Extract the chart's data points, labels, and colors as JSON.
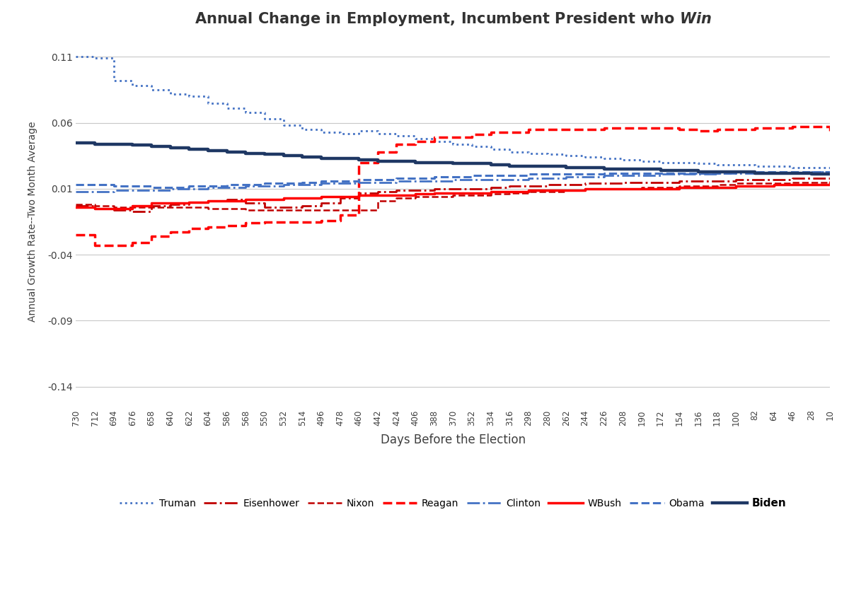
{
  "title_main": "Annual Change in Employment, Incumbent President who ",
  "title_italic": "Win",
  "ylabel": "Annual Growth Rate--Two Month Average",
  "xlabel": "Days Before the Election",
  "ylim": [
    -0.155,
    0.125
  ],
  "yticks": [
    0.11,
    0.06,
    0.01,
    -0.04,
    -0.09,
    -0.14
  ],
  "background_color": "#ffffff",
  "grid_color": "#c8c8c8",
  "series": {
    "Truman": {
      "color": "#4472c4",
      "linestyle": "dotted",
      "linewidth": 2.0,
      "x": [
        730,
        712,
        694,
        676,
        658,
        640,
        622,
        604,
        586,
        568,
        550,
        532,
        514,
        496,
        478,
        460,
        442,
        424,
        406,
        388,
        370,
        352,
        334,
        316,
        298,
        280,
        262,
        244,
        226,
        208,
        190,
        172,
        154,
        136,
        118,
        100,
        82,
        64,
        46,
        28,
        10
      ],
      "y": [
        0.11,
        0.109,
        0.092,
        0.088,
        0.085,
        0.082,
        0.08,
        0.075,
        0.071,
        0.068,
        0.063,
        0.058,
        0.055,
        0.053,
        0.052,
        0.054,
        0.052,
        0.05,
        0.048,
        0.046,
        0.044,
        0.042,
        0.04,
        0.038,
        0.037,
        0.036,
        0.035,
        0.034,
        0.033,
        0.032,
        0.031,
        0.03,
        0.03,
        0.029,
        0.028,
        0.028,
        0.027,
        0.027,
        0.026,
        0.026,
        0.025
      ]
    },
    "Eisenhower": {
      "color": "#c00000",
      "linestyle": "dashdot",
      "linewidth": 2.0,
      "x": [
        730,
        712,
        694,
        676,
        658,
        640,
        622,
        604,
        586,
        568,
        550,
        532,
        514,
        496,
        478,
        460,
        442,
        424,
        406,
        388,
        370,
        352,
        334,
        316,
        298,
        280,
        262,
        244,
        226,
        208,
        190,
        172,
        154,
        136,
        118,
        100,
        82,
        64,
        46,
        28,
        10
      ],
      "y": [
        -0.003,
        -0.005,
        -0.006,
        -0.007,
        -0.003,
        -0.002,
        0.0,
        0.001,
        0.002,
        -0.001,
        -0.004,
        -0.004,
        -0.003,
        -0.001,
        0.003,
        0.007,
        0.008,
        0.009,
        0.009,
        0.01,
        0.01,
        0.01,
        0.011,
        0.012,
        0.012,
        0.013,
        0.013,
        0.014,
        0.014,
        0.015,
        0.015,
        0.015,
        0.016,
        0.016,
        0.016,
        0.017,
        0.017,
        0.017,
        0.018,
        0.018,
        0.018
      ]
    },
    "Nixon": {
      "color": "#c00000",
      "linestyle": "dashed",
      "linewidth": 1.8,
      "x": [
        730,
        712,
        694,
        676,
        658,
        640,
        622,
        604,
        586,
        568,
        550,
        532,
        514,
        496,
        478,
        460,
        442,
        424,
        406,
        388,
        370,
        352,
        334,
        316,
        298,
        280,
        262,
        244,
        226,
        208,
        190,
        172,
        154,
        136,
        118,
        100,
        82,
        64,
        46,
        28,
        10
      ],
      "y": [
        -0.002,
        -0.003,
        -0.004,
        -0.004,
        -0.004,
        -0.004,
        -0.004,
        -0.005,
        -0.005,
        -0.006,
        -0.006,
        -0.006,
        -0.006,
        -0.006,
        -0.006,
        -0.006,
        0.001,
        0.003,
        0.004,
        0.004,
        0.005,
        0.005,
        0.006,
        0.007,
        0.008,
        0.008,
        0.009,
        0.01,
        0.01,
        0.01,
        0.011,
        0.011,
        0.012,
        0.012,
        0.013,
        0.014,
        0.014,
        0.014,
        0.015,
        0.015,
        0.016
      ]
    },
    "Reagan": {
      "color": "#ff0000",
      "linestyle": "dashed",
      "linewidth": 2.5,
      "x": [
        730,
        712,
        694,
        676,
        658,
        640,
        622,
        604,
        586,
        568,
        550,
        532,
        514,
        496,
        478,
        460,
        442,
        424,
        406,
        388,
        370,
        352,
        334,
        316,
        298,
        280,
        262,
        244,
        226,
        208,
        190,
        172,
        154,
        136,
        118,
        100,
        82,
        64,
        46,
        28,
        10
      ],
      "y": [
        -0.025,
        -0.033,
        -0.033,
        -0.031,
        -0.026,
        -0.023,
        -0.02,
        -0.019,
        -0.018,
        -0.016,
        -0.015,
        -0.015,
        -0.015,
        -0.014,
        -0.01,
        0.03,
        0.038,
        0.044,
        0.046,
        0.049,
        0.049,
        0.051,
        0.053,
        0.053,
        0.055,
        0.055,
        0.055,
        0.055,
        0.056,
        0.056,
        0.056,
        0.056,
        0.055,
        0.054,
        0.055,
        0.055,
        0.056,
        0.056,
        0.057,
        0.057,
        0.054
      ]
    },
    "Clinton": {
      "color": "#4472c4",
      "linestyle": "dashdot",
      "linewidth": 2.0,
      "x": [
        730,
        712,
        694,
        676,
        658,
        640,
        622,
        604,
        586,
        568,
        550,
        532,
        514,
        496,
        478,
        460,
        442,
        424,
        406,
        388,
        370,
        352,
        334,
        316,
        298,
        280,
        262,
        244,
        226,
        208,
        190,
        172,
        154,
        136,
        118,
        100,
        82,
        64,
        46,
        28,
        10
      ],
      "y": [
        0.008,
        0.008,
        0.009,
        0.009,
        0.009,
        0.01,
        0.01,
        0.011,
        0.011,
        0.012,
        0.012,
        0.013,
        0.013,
        0.014,
        0.014,
        0.015,
        0.015,
        0.016,
        0.016,
        0.016,
        0.017,
        0.017,
        0.017,
        0.017,
        0.018,
        0.018,
        0.019,
        0.019,
        0.02,
        0.02,
        0.02,
        0.021,
        0.021,
        0.021,
        0.022,
        0.022,
        0.022,
        0.022,
        0.022,
        0.023,
        0.023
      ]
    },
    "WBush": {
      "color": "#ff0000",
      "linestyle": "solid",
      "linewidth": 2.5,
      "x": [
        730,
        712,
        694,
        676,
        658,
        640,
        622,
        604,
        586,
        568,
        550,
        532,
        514,
        496,
        478,
        460,
        442,
        424,
        406,
        388,
        370,
        352,
        334,
        316,
        298,
        280,
        262,
        244,
        226,
        208,
        190,
        172,
        154,
        136,
        118,
        100,
        82,
        64,
        46,
        28,
        10
      ],
      "y": [
        -0.004,
        -0.005,
        -0.005,
        -0.003,
        -0.001,
        -0.001,
        0.0,
        0.001,
        0.001,
        0.002,
        0.002,
        0.003,
        0.003,
        0.004,
        0.004,
        0.005,
        0.005,
        0.005,
        0.006,
        0.007,
        0.007,
        0.007,
        0.008,
        0.008,
        0.009,
        0.009,
        0.009,
        0.01,
        0.01,
        0.01,
        0.01,
        0.01,
        0.011,
        0.011,
        0.011,
        0.012,
        0.012,
        0.013,
        0.013,
        0.013,
        0.014
      ]
    },
    "Obama": {
      "color": "#4472c4",
      "linestyle": "dashed",
      "linewidth": 2.2,
      "x": [
        730,
        712,
        694,
        676,
        658,
        640,
        622,
        604,
        586,
        568,
        550,
        532,
        514,
        496,
        478,
        460,
        442,
        424,
        406,
        388,
        370,
        352,
        334,
        316,
        298,
        280,
        262,
        244,
        226,
        208,
        190,
        172,
        154,
        136,
        118,
        100,
        82,
        64,
        46,
        28,
        10
      ],
      "y": [
        0.013,
        0.013,
        0.012,
        0.012,
        0.011,
        0.011,
        0.012,
        0.012,
        0.013,
        0.013,
        0.014,
        0.014,
        0.015,
        0.016,
        0.016,
        0.017,
        0.017,
        0.018,
        0.018,
        0.019,
        0.019,
        0.02,
        0.02,
        0.02,
        0.021,
        0.021,
        0.021,
        0.021,
        0.022,
        0.022,
        0.022,
        0.022,
        0.022,
        0.022,
        0.022,
        0.023,
        0.023,
        0.023,
        0.023,
        0.023,
        0.023
      ]
    },
    "Biden": {
      "color": "#1f3864",
      "linestyle": "solid",
      "linewidth": 3.2,
      "x": [
        730,
        712,
        694,
        676,
        658,
        640,
        622,
        604,
        586,
        568,
        550,
        532,
        514,
        496,
        478,
        460,
        442,
        424,
        406,
        388,
        370,
        352,
        334,
        316,
        298,
        280,
        262,
        244,
        226,
        208,
        190,
        172,
        154,
        136,
        118,
        100,
        82,
        64,
        46,
        28,
        10
      ],
      "y": [
        0.045,
        0.044,
        0.044,
        0.043,
        0.042,
        0.041,
        0.04,
        0.039,
        0.038,
        0.037,
        0.036,
        0.035,
        0.034,
        0.033,
        0.033,
        0.032,
        0.031,
        0.031,
        0.03,
        0.03,
        0.029,
        0.029,
        0.028,
        0.027,
        0.027,
        0.027,
        0.026,
        0.026,
        0.025,
        0.025,
        0.025,
        0.024,
        0.024,
        0.023,
        0.023,
        0.023,
        0.022,
        0.022,
        0.022,
        0.021,
        0.021
      ]
    }
  },
  "xticks": [
    730,
    712,
    694,
    676,
    658,
    640,
    622,
    604,
    586,
    568,
    550,
    532,
    514,
    496,
    478,
    460,
    442,
    424,
    406,
    388,
    370,
    352,
    334,
    316,
    298,
    280,
    262,
    244,
    226,
    208,
    190,
    172,
    154,
    136,
    118,
    100,
    82,
    64,
    46,
    28,
    10
  ],
  "legend_entries": [
    {
      "label": "Truman",
      "color": "#4472c4",
      "linestyle": "dotted",
      "linewidth": 2.0,
      "bold": false
    },
    {
      "label": "Eisenhower",
      "color": "#c00000",
      "linestyle": "dashdot",
      "linewidth": 2.0,
      "bold": false
    },
    {
      "label": "Nixon",
      "color": "#c00000",
      "linestyle": "dashed",
      "linewidth": 1.8,
      "bold": false
    },
    {
      "label": "Reagan",
      "color": "#ff0000",
      "linestyle": "dashed",
      "linewidth": 2.5,
      "bold": false
    },
    {
      "label": "Clinton",
      "color": "#4472c4",
      "linestyle": "dashdot",
      "linewidth": 2.0,
      "bold": false
    },
    {
      "label": "WBush",
      "color": "#ff0000",
      "linestyle": "solid",
      "linewidth": 2.5,
      "bold": false
    },
    {
      "label": "Obama",
      "color": "#4472c4",
      "linestyle": "dashed",
      "linewidth": 2.2,
      "bold": false
    },
    {
      "label": "Biden",
      "color": "#1f3864",
      "linestyle": "solid",
      "linewidth": 3.2,
      "bold": true
    }
  ]
}
